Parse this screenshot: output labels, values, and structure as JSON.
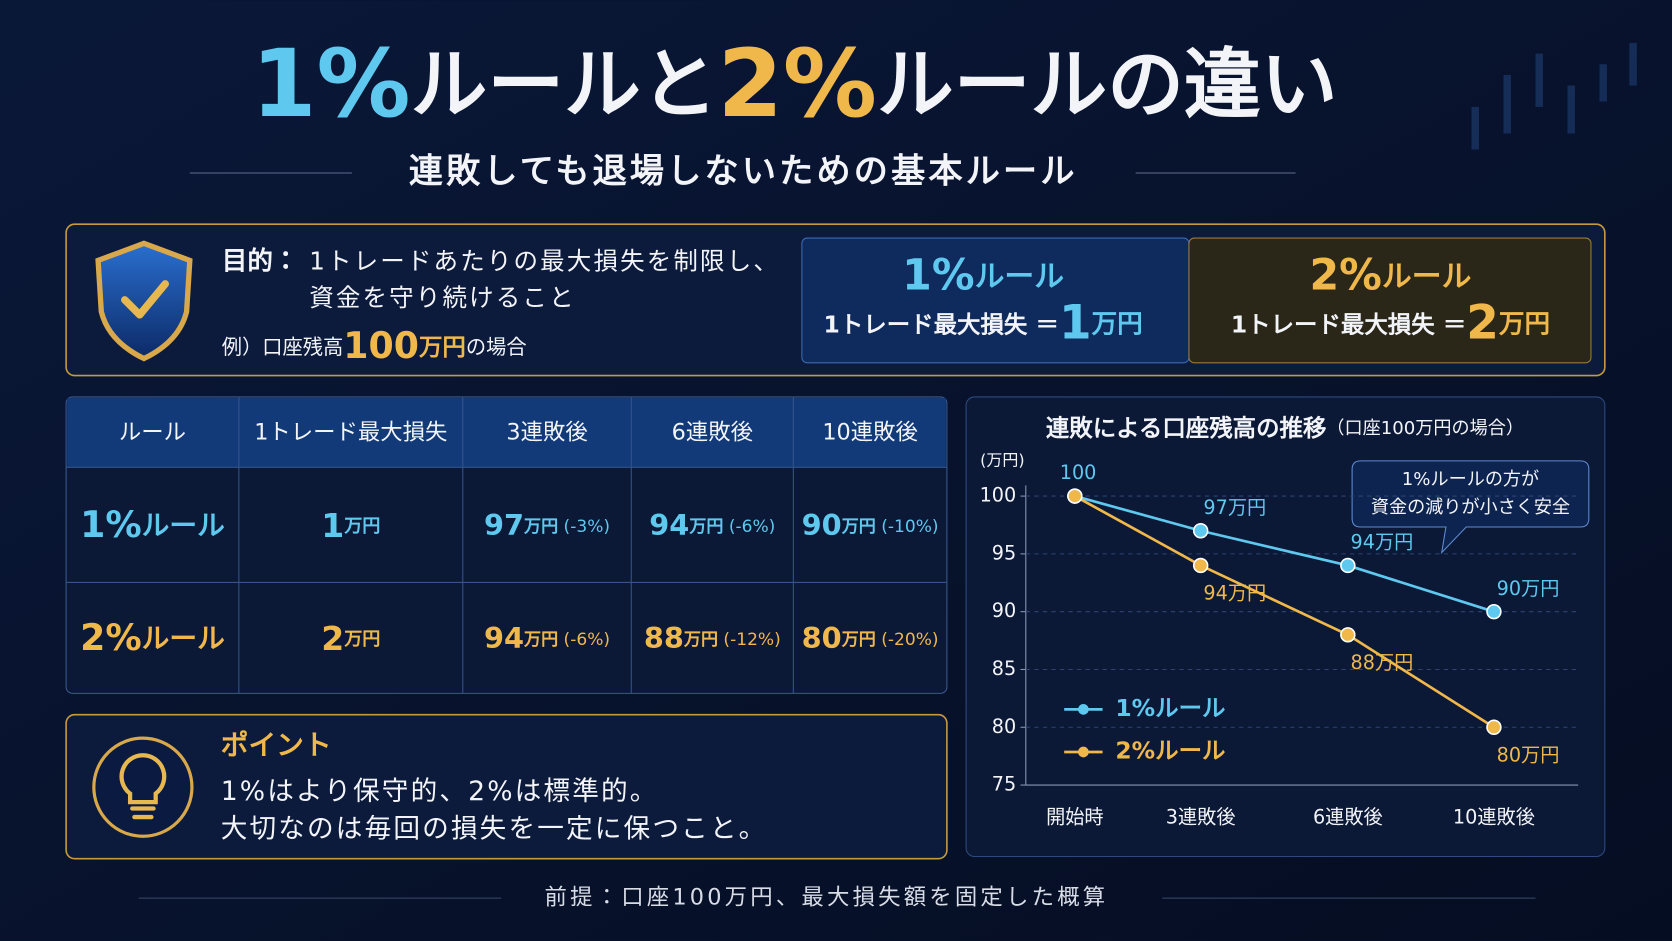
{
  "header": {
    "title": [
      "1%",
      "ルールと",
      "2%",
      "ルールの違い"
    ],
    "subtitle": "連敗しても退場しないための基本ルール"
  },
  "purpose": {
    "label": "目的：",
    "lines": [
      "1トレードあたりの最大損失を制限し、",
      "資金を守り続けること"
    ],
    "example": {
      "prefix": "例）口座残高",
      "amount": "100",
      "unit": "万円",
      "suffix": "の場合"
    }
  },
  "rule_cards": [
    {
      "pct": "1%",
      "word": "ルール",
      "loss_label": "1トレード最大損失 ＝",
      "amount": "1",
      "unit": "万円"
    },
    {
      "pct": "2%",
      "word": "ルール",
      "loss_label": "1トレード最大損失 ＝",
      "amount": "2",
      "unit": "万円"
    }
  ],
  "table": {
    "header": [
      "ルール",
      "1トレード最大損失",
      "3連敗後",
      "6連敗後",
      "10連敗後"
    ],
    "rows": [
      [
        {
          "pct": "1%",
          "word": "ルール"
        },
        {
          "amount": "1",
          "unit": "万円"
        },
        {
          "amount": "97",
          "unit": "万円",
          "change": " (-3%)"
        },
        {
          "amount": "94",
          "unit": "万円",
          "change": " (-6%)"
        },
        {
          "amount": "90",
          "unit": "万円",
          "change": " (-10%)"
        }
      ],
      [
        {
          "pct": "2%",
          "word": "ルール"
        },
        {
          "amount": "2",
          "unit": "万円"
        },
        {
          "amount": "94",
          "unit": "万円",
          "change": " (-6%)"
        },
        {
          "amount": "88",
          "unit": "万円",
          "change": " (-12%)"
        },
        {
          "amount": "80",
          "unit": "万円",
          "change": " (-20%)"
        }
      ]
    ]
  },
  "point": {
    "title": "ポイント",
    "lines": [
      "1%はより保守的、2%は標準的。",
      "大切なのは毎回の損失を一定に保つこと。"
    ]
  },
  "footnote": "前提：口座100万円、最大損失額を固定した概算",
  "chart_data": {
    "type": "line",
    "title": "連敗による口座残高の推移",
    "subtitle": "（口座100万円の場合）",
    "y_unit": "(万円)",
    "categories": [
      "開始時",
      "3連敗後",
      "6連敗後",
      "10連敗後"
    ],
    "series": [
      {
        "name": "1%ルール",
        "color": "#5ec8ef",
        "values": [
          100,
          97,
          94,
          90
        ],
        "value_labels": [
          "100",
          "97万円",
          "94万円",
          "90万円"
        ]
      },
      {
        "name": "2%ルール",
        "color": "#f0b84a",
        "values": [
          100,
          94,
          88,
          80
        ],
        "value_labels": [
          null,
          "94万円",
          "88万円",
          "80万円"
        ]
      }
    ],
    "ylim": [
      75,
      100
    ],
    "yticks": [
      75,
      80,
      85,
      90,
      95,
      100
    ],
    "grid": true,
    "legend": "lower left",
    "annotation": [
      "1%ルールの方が",
      "資金の減りが小さく安全"
    ]
  }
}
